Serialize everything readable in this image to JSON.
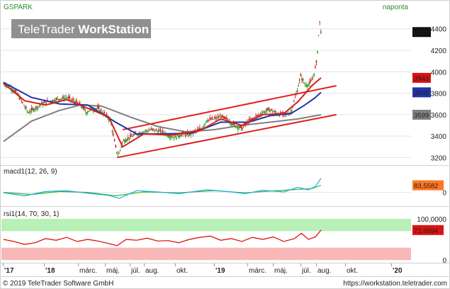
{
  "header": {
    "symbol": "GSPARK",
    "frequency": "naponta",
    "watermark_light": "TeleTrader ",
    "watermark_bold": "WorkStation"
  },
  "footer": {
    "copyright": "© 2019 TeleTrader Software GmbH",
    "url": "https://workstation.teletrader.com"
  },
  "colors": {
    "up": "#2e9e2e",
    "down": "#cc2020",
    "channel": "#e02020",
    "ma_short": "#d42020",
    "ma_mid": "#2233aa",
    "ma_long": "#808080",
    "macd_line": "#22aadd",
    "macd_signal": "#33bb33",
    "rsi_line": "#dd0000",
    "rsi_upper_zone": "#b8f0b8",
    "rsi_lower_zone": "#f8b8b8"
  },
  "time_axis": {
    "labels": [
      "'17",
      "'18",
      "márc.",
      "máj.",
      "júl.",
      "aug.",
      "okt.",
      "'19",
      "márc.",
      "máj.",
      "júl.",
      "aug.",
      "okt.",
      "'20"
    ]
  },
  "chart_data": [
    {
      "type": "candlestick",
      "panel": "price",
      "ylim": [
        3150,
        4550
      ],
      "yticks": [
        3200,
        3400,
        3600,
        3800,
        4000,
        4200,
        4400
      ],
      "value_badges": [
        {
          "label": "4370",
          "value": 4370,
          "color": "#111111"
        },
        {
          "label": "3943",
          "value": 3943,
          "color": "#dd1111"
        },
        {
          "label": "3808",
          "value": 3808,
          "color": "#2233aa"
        },
        {
          "label": "3599",
          "value": 3599,
          "color": "#808080"
        }
      ],
      "close_path": [
        {
          "t": 0,
          "v": 3890
        },
        {
          "t": 10,
          "v": 3860
        },
        {
          "t": 20,
          "v": 3790
        },
        {
          "t": 28,
          "v": 3700
        },
        {
          "t": 35,
          "v": 3620
        },
        {
          "t": 45,
          "v": 3660
        },
        {
          "t": 55,
          "v": 3700
        },
        {
          "t": 62,
          "v": 3720
        },
        {
          "t": 75,
          "v": 3740
        },
        {
          "t": 90,
          "v": 3760
        },
        {
          "t": 100,
          "v": 3730
        },
        {
          "t": 110,
          "v": 3690
        },
        {
          "t": 118,
          "v": 3620
        },
        {
          "t": 125,
          "v": 3650
        },
        {
          "t": 135,
          "v": 3660
        },
        {
          "t": 145,
          "v": 3600
        },
        {
          "t": 152,
          "v": 3550
        },
        {
          "t": 157,
          "v": 3400
        },
        {
          "t": 161,
          "v": 3260
        },
        {
          "t": 164,
          "v": 3220
        },
        {
          "t": 170,
          "v": 3350
        },
        {
          "t": 180,
          "v": 3390
        },
        {
          "t": 190,
          "v": 3420
        },
        {
          "t": 200,
          "v": 3440
        },
        {
          "t": 210,
          "v": 3460
        },
        {
          "t": 220,
          "v": 3450
        },
        {
          "t": 230,
          "v": 3430
        },
        {
          "t": 238,
          "v": 3400
        },
        {
          "t": 245,
          "v": 3390
        },
        {
          "t": 255,
          "v": 3420
        },
        {
          "t": 265,
          "v": 3410
        },
        {
          "t": 275,
          "v": 3450
        },
        {
          "t": 283,
          "v": 3470
        },
        {
          "t": 290,
          "v": 3550
        },
        {
          "t": 300,
          "v": 3560
        },
        {
          "t": 310,
          "v": 3580
        },
        {
          "t": 320,
          "v": 3550
        },
        {
          "t": 330,
          "v": 3500
        },
        {
          "t": 340,
          "v": 3470
        },
        {
          "t": 350,
          "v": 3540
        },
        {
          "t": 360,
          "v": 3580
        },
        {
          "t": 370,
          "v": 3620
        },
        {
          "t": 380,
          "v": 3650
        },
        {
          "t": 390,
          "v": 3610
        },
        {
          "t": 400,
          "v": 3600
        },
        {
          "t": 410,
          "v": 3620
        },
        {
          "t": 418,
          "v": 3800
        },
        {
          "t": 424,
          "v": 3960
        },
        {
          "t": 430,
          "v": 3880
        },
        {
          "t": 436,
          "v": 3880
        },
        {
          "t": 442,
          "v": 3950
        },
        {
          "t": 447,
          "v": 4100
        },
        {
          "t": 451,
          "v": 4470
        },
        {
          "t": 453,
          "v": 4370
        }
      ],
      "ma_short": [
        {
          "t": 0,
          "v": 3890
        },
        {
          "t": 30,
          "v": 3730
        },
        {
          "t": 60,
          "v": 3690
        },
        {
          "t": 90,
          "v": 3740
        },
        {
          "t": 120,
          "v": 3660
        },
        {
          "t": 150,
          "v": 3580
        },
        {
          "t": 170,
          "v": 3300
        },
        {
          "t": 200,
          "v": 3420
        },
        {
          "t": 240,
          "v": 3410
        },
        {
          "t": 280,
          "v": 3450
        },
        {
          "t": 310,
          "v": 3560
        },
        {
          "t": 340,
          "v": 3500
        },
        {
          "t": 370,
          "v": 3600
        },
        {
          "t": 400,
          "v": 3610
        },
        {
          "t": 420,
          "v": 3720
        },
        {
          "t": 440,
          "v": 3870
        },
        {
          "t": 453,
          "v": 3943
        }
      ],
      "ma_mid": [
        {
          "t": 0,
          "v": 3900
        },
        {
          "t": 40,
          "v": 3760
        },
        {
          "t": 80,
          "v": 3700
        },
        {
          "t": 120,
          "v": 3690
        },
        {
          "t": 160,
          "v": 3530
        },
        {
          "t": 190,
          "v": 3420
        },
        {
          "t": 230,
          "v": 3420
        },
        {
          "t": 270,
          "v": 3430
        },
        {
          "t": 310,
          "v": 3530
        },
        {
          "t": 350,
          "v": 3530
        },
        {
          "t": 380,
          "v": 3590
        },
        {
          "t": 410,
          "v": 3610
        },
        {
          "t": 430,
          "v": 3690
        },
        {
          "t": 445,
          "v": 3760
        },
        {
          "t": 453,
          "v": 3808
        }
      ],
      "ma_long": [
        {
          "t": 0,
          "v": 3350
        },
        {
          "t": 40,
          "v": 3540
        },
        {
          "t": 80,
          "v": 3640
        },
        {
          "t": 110,
          "v": 3690
        },
        {
          "t": 140,
          "v": 3680
        },
        {
          "t": 180,
          "v": 3580
        },
        {
          "t": 220,
          "v": 3490
        },
        {
          "t": 260,
          "v": 3440
        },
        {
          "t": 300,
          "v": 3460
        },
        {
          "t": 340,
          "v": 3500
        },
        {
          "t": 380,
          "v": 3530
        },
        {
          "t": 420,
          "v": 3560
        },
        {
          "t": 453,
          "v": 3599
        }
      ],
      "channel_upper": [
        {
          "t": 170,
          "v": 3460
        },
        {
          "t": 475,
          "v": 3870
        }
      ],
      "channel_lower": [
        {
          "t": 162,
          "v": 3200
        },
        {
          "t": 475,
          "v": 3600
        }
      ]
    },
    {
      "type": "line",
      "panel": "macd",
      "title": "macd1(12, 26, 9)",
      "ylim": [
        -120,
        180
      ],
      "yticks": [
        0
      ],
      "value_badge": {
        "label": "83,5582",
        "value": 83.5582,
        "color": "#ff7722"
      },
      "macd": [
        {
          "t": 0,
          "v": -5
        },
        {
          "t": 30,
          "v": -40
        },
        {
          "t": 60,
          "v": 10
        },
        {
          "t": 90,
          "v": 20
        },
        {
          "t": 120,
          "v": -10
        },
        {
          "t": 150,
          "v": -35
        },
        {
          "t": 165,
          "v": -70
        },
        {
          "t": 190,
          "v": 20
        },
        {
          "t": 220,
          "v": 5
        },
        {
          "t": 250,
          "v": -15
        },
        {
          "t": 290,
          "v": 30
        },
        {
          "t": 320,
          "v": 10
        },
        {
          "t": 345,
          "v": -15
        },
        {
          "t": 370,
          "v": 25
        },
        {
          "t": 400,
          "v": 5
        },
        {
          "t": 420,
          "v": 60
        },
        {
          "t": 435,
          "v": 30
        },
        {
          "t": 445,
          "v": 70
        },
        {
          "t": 453,
          "v": 165
        }
      ],
      "signal": [
        {
          "t": 0,
          "v": 0
        },
        {
          "t": 40,
          "v": -25
        },
        {
          "t": 80,
          "v": 10
        },
        {
          "t": 120,
          "v": 0
        },
        {
          "t": 160,
          "v": -40
        },
        {
          "t": 200,
          "v": 5
        },
        {
          "t": 250,
          "v": -5
        },
        {
          "t": 300,
          "v": 20
        },
        {
          "t": 345,
          "v": -5
        },
        {
          "t": 380,
          "v": 15
        },
        {
          "t": 420,
          "v": 35
        },
        {
          "t": 440,
          "v": 45
        },
        {
          "t": 453,
          "v": 83.5582
        }
      ]
    },
    {
      "type": "line",
      "panel": "rsi",
      "title": "rsi1(14, 70, 30, 1)",
      "ylim": [
        -5,
        105
      ],
      "yticks": [
        0,
        100
      ],
      "tick_labels": [
        "0",
        "100,0000"
      ],
      "overbought": 70,
      "oversold": 30,
      "value_badge": {
        "label": "72,6994",
        "value": 72.6994,
        "color": "#dd1111"
      },
      "rsi": [
        {
          "t": 0,
          "v": 50
        },
        {
          "t": 15,
          "v": 45
        },
        {
          "t": 30,
          "v": 38
        },
        {
          "t": 45,
          "v": 42
        },
        {
          "t": 60,
          "v": 52
        },
        {
          "t": 75,
          "v": 48
        },
        {
          "t": 90,
          "v": 55
        },
        {
          "t": 105,
          "v": 45
        },
        {
          "t": 120,
          "v": 50
        },
        {
          "t": 135,
          "v": 46
        },
        {
          "t": 150,
          "v": 40
        },
        {
          "t": 162,
          "v": 35
        },
        {
          "t": 175,
          "v": 50
        },
        {
          "t": 190,
          "v": 48
        },
        {
          "t": 205,
          "v": 53
        },
        {
          "t": 220,
          "v": 46
        },
        {
          "t": 235,
          "v": 47
        },
        {
          "t": 250,
          "v": 42
        },
        {
          "t": 265,
          "v": 50
        },
        {
          "t": 280,
          "v": 55
        },
        {
          "t": 295,
          "v": 58
        },
        {
          "t": 310,
          "v": 48
        },
        {
          "t": 325,
          "v": 52
        },
        {
          "t": 340,
          "v": 45
        },
        {
          "t": 355,
          "v": 55
        },
        {
          "t": 370,
          "v": 50
        },
        {
          "t": 385,
          "v": 56
        },
        {
          "t": 400,
          "v": 45
        },
        {
          "t": 415,
          "v": 52
        },
        {
          "t": 425,
          "v": 65
        },
        {
          "t": 435,
          "v": 50
        },
        {
          "t": 445,
          "v": 56
        },
        {
          "t": 453,
          "v": 72.6994
        }
      ]
    }
  ]
}
